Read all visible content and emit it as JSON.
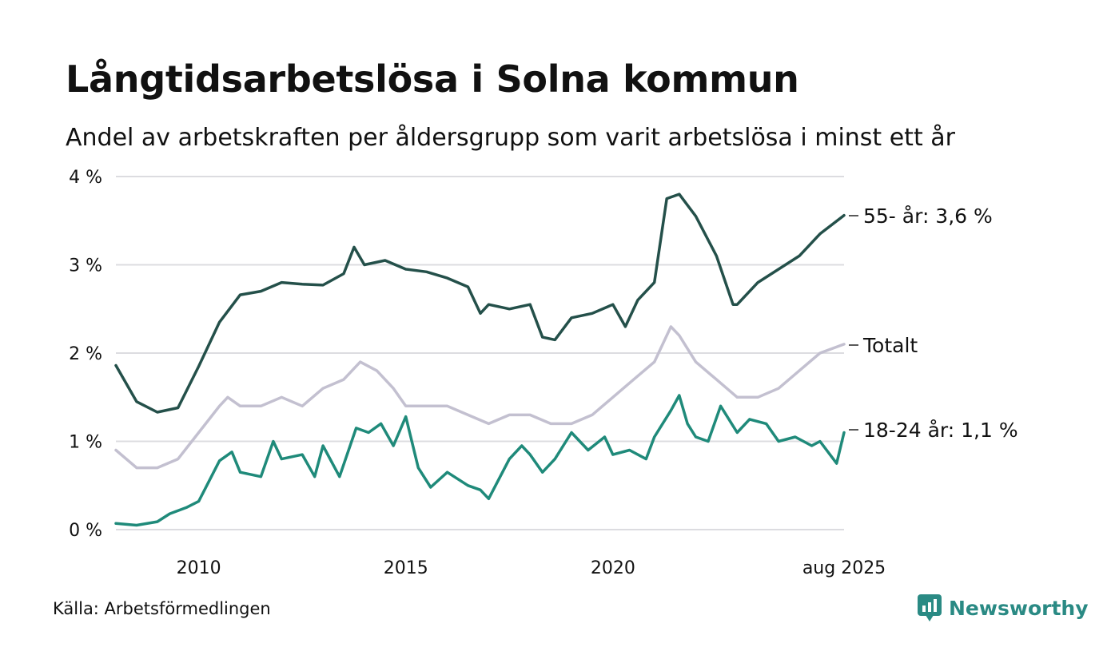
{
  "chart_data": {
    "type": "line",
    "title": "Långtidsarbetslösa i Solna kommun",
    "subtitle": "Andel av arbetskraften per åldersgrupp som varit arbetslösa i minst ett år",
    "x_ticks": [
      {
        "x": 2010.0,
        "label": "2010"
      },
      {
        "x": 2015.0,
        "label": "2015"
      },
      {
        "x": 2020.0,
        "label": "2020"
      },
      {
        "x": 2025.58,
        "label": "aug 2025"
      }
    ],
    "y_ticks": [
      {
        "y": 0,
        "label": "0 %"
      },
      {
        "y": 1,
        "label": "1 %"
      },
      {
        "y": 2,
        "label": "2 %"
      },
      {
        "y": 3,
        "label": "3 %"
      },
      {
        "y": 4,
        "label": "4 %"
      }
    ],
    "xlim": [
      2008.0,
      2025.58
    ],
    "ylim": [
      0,
      4
    ],
    "grid": true,
    "legend": "none (series labelled at right end of lines)",
    "series": [
      {
        "key": "age_55_plus",
        "end_label": "55- år: 3,6 %",
        "color": "#24504a",
        "x": [
          2008.0,
          2008.5,
          2009.0,
          2009.5,
          2010.0,
          2010.5,
          2011.0,
          2011.5,
          2012.0,
          2012.5,
          2013.0,
          2013.5,
          2013.75,
          2014.0,
          2014.5,
          2015.0,
          2015.5,
          2016.0,
          2016.5,
          2016.8,
          2017.0,
          2017.5,
          2018.0,
          2018.3,
          2018.6,
          2019.0,
          2019.5,
          2020.0,
          2020.3,
          2020.6,
          2021.0,
          2021.3,
          2021.6,
          2022.0,
          2022.5,
          2022.9,
          2023.0,
          2023.5,
          2024.0,
          2024.5,
          2025.0,
          2025.58
        ],
        "y": [
          1.86,
          1.45,
          1.33,
          1.38,
          1.85,
          2.35,
          2.66,
          2.7,
          2.8,
          2.78,
          2.77,
          2.9,
          3.2,
          3.0,
          3.05,
          2.95,
          2.92,
          2.85,
          2.75,
          2.45,
          2.55,
          2.5,
          2.55,
          2.18,
          2.15,
          2.4,
          2.45,
          2.55,
          2.3,
          2.6,
          2.8,
          3.75,
          3.8,
          3.55,
          3.1,
          2.55,
          2.55,
          2.8,
          2.95,
          3.1,
          3.35,
          3.56
        ]
      },
      {
        "key": "total",
        "end_label": "Totalt",
        "color": "#c3c0d0",
        "x": [
          2008.0,
          2008.5,
          2009.0,
          2009.5,
          2010.0,
          2010.5,
          2010.7,
          2011.0,
          2011.5,
          2012.0,
          2012.5,
          2013.0,
          2013.5,
          2013.9,
          2014.3,
          2014.7,
          2015.0,
          2015.5,
          2016.0,
          2016.5,
          2017.0,
          2017.5,
          2018.0,
          2018.5,
          2019.0,
          2019.5,
          2020.0,
          2020.5,
          2021.0,
          2021.4,
          2021.6,
          2022.0,
          2022.5,
          2023.0,
          2023.5,
          2024.0,
          2024.5,
          2025.0,
          2025.58
        ],
        "y": [
          0.9,
          0.7,
          0.7,
          0.8,
          1.1,
          1.4,
          1.5,
          1.4,
          1.4,
          1.5,
          1.4,
          1.6,
          1.7,
          1.9,
          1.8,
          1.6,
          1.4,
          1.4,
          1.4,
          1.3,
          1.2,
          1.3,
          1.3,
          1.2,
          1.2,
          1.3,
          1.5,
          1.7,
          1.9,
          2.3,
          2.2,
          1.9,
          1.7,
          1.5,
          1.5,
          1.6,
          1.8,
          2.0,
          2.1
        ]
      },
      {
        "key": "age_18_24",
        "end_label": "18-24 år: 1,1 %",
        "color": "#1f8a7a",
        "x": [
          2008.0,
          2008.5,
          2009.0,
          2009.3,
          2009.7,
          2010.0,
          2010.5,
          2010.8,
          2011.0,
          2011.5,
          2011.8,
          2012.0,
          2012.5,
          2012.8,
          2013.0,
          2013.4,
          2013.8,
          2014.1,
          2014.4,
          2014.7,
          2015.0,
          2015.3,
          2015.6,
          2016.0,
          2016.5,
          2016.8,
          2017.0,
          2017.5,
          2017.8,
          2018.0,
          2018.3,
          2018.6,
          2019.0,
          2019.4,
          2019.8,
          2020.0,
          2020.4,
          2020.8,
          2021.0,
          2021.4,
          2021.6,
          2021.8,
          2022.0,
          2022.3,
          2022.6,
          2023.0,
          2023.3,
          2023.7,
          2024.0,
          2024.4,
          2024.8,
          2025.0,
          2025.4,
          2025.58
        ],
        "y": [
          0.07,
          0.05,
          0.09,
          0.18,
          0.25,
          0.32,
          0.78,
          0.88,
          0.65,
          0.6,
          1.0,
          0.8,
          0.85,
          0.6,
          0.95,
          0.6,
          1.15,
          1.1,
          1.2,
          0.95,
          1.28,
          0.7,
          0.48,
          0.65,
          0.5,
          0.45,
          0.35,
          0.8,
          0.95,
          0.85,
          0.65,
          0.8,
          1.1,
          0.9,
          1.05,
          0.85,
          0.9,
          0.8,
          1.05,
          1.35,
          1.52,
          1.2,
          1.05,
          1.0,
          1.4,
          1.1,
          1.25,
          1.2,
          1.0,
          1.05,
          0.95,
          1.0,
          0.75,
          1.1
        ]
      }
    ]
  },
  "footer": {
    "source": "Källa: Arbetsförmedlingen",
    "brand": "Newsworthy",
    "brand_icon": "bar-chart-speech-bubble-icon",
    "brand_color": "#2a8a84"
  }
}
